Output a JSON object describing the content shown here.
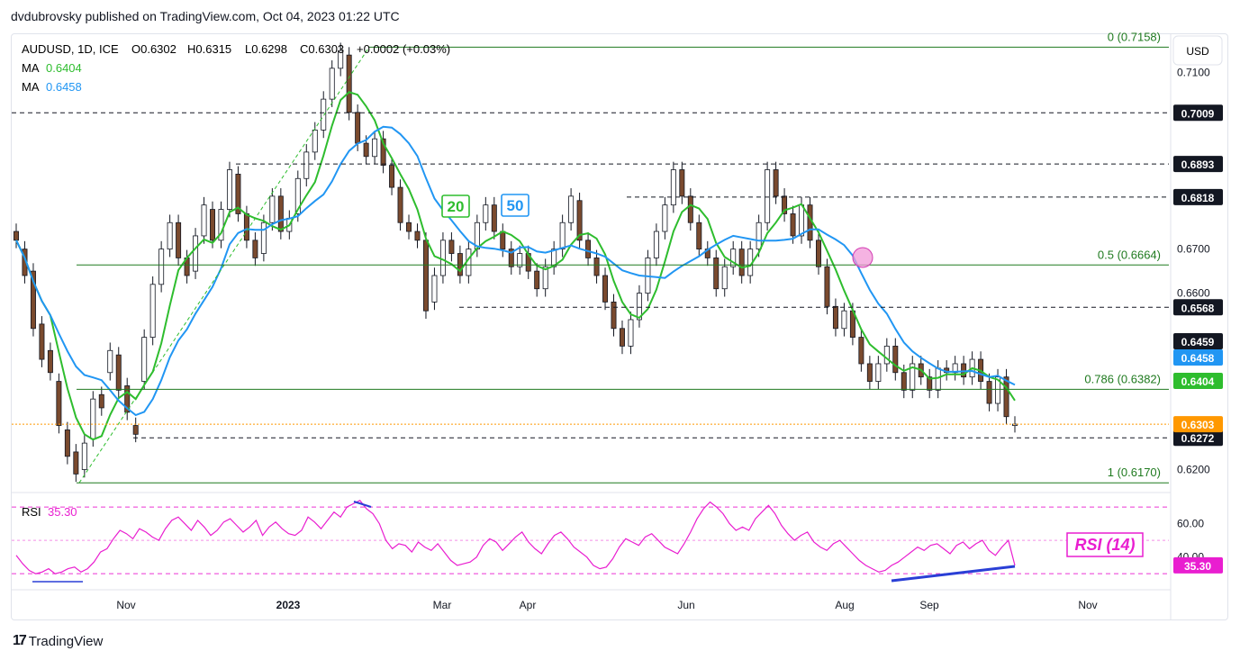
{
  "publisher_line": "dvdubrovsky published on TradingView.com, Oct 04, 2023 01:22 UTC",
  "footer": {
    "logo_mark": "17",
    "brand": "TradingView"
  },
  "colors": {
    "candle": "#131722",
    "candle_body_down": "#7a4a2e",
    "ma20": "#2ebd2e",
    "ma50": "#2196f3",
    "fib_line": "#1f7a1f",
    "level_dash": "#131722",
    "current_price": "#ff9800",
    "rsi": "#e91ed0",
    "rsi_divergence": "#2a3fd6",
    "highlight_circle": "#f29ad8"
  },
  "chart_data": [
    {
      "type": "candlestick",
      "header": {
        "symbol_line": "AUDUSD, 1D, ICE",
        "open": "O0.6302",
        "high": "H0.6315",
        "low": "L0.6298",
        "close": "C0.6303",
        "change": "+0.0002 (+0.03%)"
      },
      "legend": [
        {
          "label": "MA",
          "value": "0.6404",
          "color": "#2ebd2e"
        },
        {
          "label": "MA",
          "value": "0.6458",
          "color": "#2196f3"
        }
      ],
      "currency_button": "USD",
      "x_tick_labels": [
        "Nov",
        "2023",
        "Mar",
        "Apr",
        "Jun",
        "Aug",
        "Sep",
        "Nov"
      ],
      "y_tick_labels": [
        "0.7100",
        "0.6700",
        "0.6600",
        "0.6200"
      ],
      "ylim": [
        0.615,
        0.7175
      ],
      "fib_levels": [
        {
          "label": "0 (0.7158)",
          "value": 0.7158
        },
        {
          "label": "0.5 (0.6664)",
          "value": 0.6664
        },
        {
          "label": "0.786 (0.6382)",
          "value": 0.6382
        },
        {
          "label": "1 (0.6170)",
          "value": 0.617
        }
      ],
      "dashed_levels": [
        {
          "label": "0.7009",
          "value": 0.7009
        },
        {
          "label": "0.6893",
          "value": 0.6893
        },
        {
          "label": "0.6818",
          "value": 0.6818
        },
        {
          "label": "0.6568",
          "value": 0.6568
        },
        {
          "label": "0.6272",
          "value": 0.6272
        }
      ],
      "price_badges": [
        {
          "label": "0.6459",
          "value": 0.6459,
          "color": "#131722"
        },
        {
          "label": "0.6458",
          "value": 0.6458,
          "color": "#2196f3"
        },
        {
          "label": "0.6404",
          "value": 0.6404,
          "color": "#2ebd2e"
        },
        {
          "label": "0.6303",
          "value": 0.6303,
          "color": "#ff9800"
        }
      ],
      "annotations": {
        "ma20_tag": "20",
        "ma50_tag": "50"
      },
      "series": [
        {
          "name": "AUDUSD",
          "points": [
            [
              0.674,
              0.672
            ],
            [
              0.67,
              0.664
            ],
            [
              0.665,
              0.652
            ],
            [
              0.653,
              0.645
            ],
            [
              0.647,
              0.642
            ],
            [
              0.64,
              0.63
            ],
            [
              0.629,
              0.623
            ],
            [
              0.624,
              0.619
            ],
            [
              0.62,
              0.626
            ],
            [
              0.627,
              0.636
            ],
            [
              0.637,
              0.634
            ],
            [
              0.642,
              0.647
            ],
            [
              0.646,
              0.638
            ],
            [
              0.639,
              0.633
            ],
            [
              0.63,
              0.628
            ],
            [
              0.64,
              0.65
            ],
            [
              0.65,
              0.662
            ],
            [
              0.662,
              0.67
            ],
            [
              0.67,
              0.676
            ],
            [
              0.676,
              0.668
            ],
            [
              0.668,
              0.664
            ],
            [
              0.665,
              0.673
            ],
            [
              0.673,
              0.68
            ],
            [
              0.679,
              0.672
            ],
            [
              0.672,
              0.679
            ],
            [
              0.679,
              0.688
            ],
            [
              0.687,
              0.678
            ],
            [
              0.678,
              0.672
            ],
            [
              0.672,
              0.668
            ],
            [
              0.669,
              0.676
            ],
            [
              0.676,
              0.682
            ],
            [
              0.682,
              0.674
            ],
            [
              0.674,
              0.677
            ],
            [
              0.678,
              0.686
            ],
            [
              0.686,
              0.692
            ],
            [
              0.692,
              0.697
            ],
            [
              0.697,
              0.704
            ],
            [
              0.704,
              0.711
            ],
            [
              0.711,
              0.715
            ],
            [
              0.714,
              0.701
            ],
            [
              0.701,
              0.694
            ],
            [
              0.694,
              0.691
            ],
            [
              0.691,
              0.695
            ],
            [
              0.695,
              0.689
            ],
            [
              0.689,
              0.684
            ],
            [
              0.684,
              0.676
            ],
            [
              0.676,
              0.674
            ],
            [
              0.674,
              0.672
            ],
            [
              0.672,
              0.656
            ],
            [
              0.658,
              0.664
            ],
            [
              0.664,
              0.672
            ],
            [
              0.672,
              0.669
            ],
            [
              0.669,
              0.664
            ],
            [
              0.664,
              0.67
            ],
            [
              0.67,
              0.676
            ],
            [
              0.676,
              0.68
            ],
            [
              0.68,
              0.674
            ],
            [
              0.674,
              0.67
            ],
            [
              0.67,
              0.666
            ],
            [
              0.666,
              0.669
            ],
            [
              0.669,
              0.665
            ],
            [
              0.665,
              0.661
            ],
            [
              0.661,
              0.666
            ],
            [
              0.666,
              0.67
            ],
            [
              0.67,
              0.676
            ],
            [
              0.676,
              0.682
            ],
            [
              0.681,
              0.672
            ],
            [
              0.672,
              0.668
            ],
            [
              0.668,
              0.664
            ],
            [
              0.664,
              0.658
            ],
            [
              0.658,
              0.652
            ],
            [
              0.652,
              0.648
            ],
            [
              0.648,
              0.654
            ],
            [
              0.654,
              0.66
            ],
            [
              0.66,
              0.668
            ],
            [
              0.668,
              0.674
            ],
            [
              0.674,
              0.68
            ],
            [
              0.68,
              0.688
            ],
            [
              0.688,
              0.682
            ],
            [
              0.682,
              0.676
            ],
            [
              0.676,
              0.67
            ],
            [
              0.67,
              0.668
            ],
            [
              0.668,
              0.661
            ],
            [
              0.661,
              0.666
            ],
            [
              0.666,
              0.67
            ],
            [
              0.67,
              0.664
            ],
            [
              0.664,
              0.67
            ],
            [
              0.67,
              0.676
            ],
            [
              0.676,
              0.688
            ],
            [
              0.688,
              0.682
            ],
            [
              0.682,
              0.678
            ],
            [
              0.678,
              0.673
            ],
            [
              0.673,
              0.68
            ],
            [
              0.68,
              0.672
            ],
            [
              0.672,
              0.666
            ],
            [
              0.666,
              0.657
            ],
            [
              0.657,
              0.652
            ],
            [
              0.652,
              0.656
            ],
            [
              0.656,
              0.65
            ],
            [
              0.65,
              0.644
            ],
            [
              0.644,
              0.64
            ],
            [
              0.64,
              0.644
            ],
            [
              0.644,
              0.648
            ],
            [
              0.648,
              0.642
            ],
            [
              0.642,
              0.638
            ],
            [
              0.638,
              0.644
            ],
            [
              0.644,
              0.641
            ],
            [
              0.641,
              0.638
            ],
            [
              0.638,
              0.643
            ],
            [
              0.643,
              0.642
            ],
            [
              0.642,
              0.644
            ],
            [
              0.644,
              0.641
            ],
            [
              0.641,
              0.645
            ],
            [
              0.645,
              0.64
            ],
            [
              0.64,
              0.635
            ],
            [
              0.635,
              0.641
            ],
            [
              0.641,
              0.632
            ],
            [
              0.6302,
              0.6303
            ]
          ]
        },
        {
          "name": "MA",
          "value": 0.6404
        },
        {
          "name": "MA",
          "value": 0.6458
        }
      ]
    },
    {
      "type": "line",
      "indicator": "RSI",
      "legend": {
        "label": "RSI",
        "value": "35.30"
      },
      "badge": "35.30",
      "watermark": "RSI (14)",
      "y_tick_labels": [
        "60.00",
        "40.00"
      ],
      "ylim": [
        22,
        76
      ],
      "guides": [
        70,
        50,
        30
      ],
      "values": [
        41,
        36,
        32,
        30,
        31,
        33,
        30,
        31,
        33,
        34,
        31,
        33,
        37,
        43,
        45,
        51,
        56,
        54,
        51,
        57,
        55,
        52,
        50,
        57,
        62,
        64,
        60,
        56,
        62,
        58,
        53,
        56,
        61,
        63,
        59,
        55,
        58,
        62,
        53,
        58,
        61,
        57,
        54,
        53,
        56,
        64,
        61,
        57,
        62,
        67,
        64,
        70,
        72,
        74,
        69,
        66,
        60,
        50,
        45,
        48,
        47,
        43,
        49,
        46,
        44,
        48,
        43,
        38,
        35,
        36,
        37,
        40,
        47,
        51,
        49,
        44,
        48,
        52,
        55,
        49,
        45,
        42,
        48,
        53,
        55,
        51,
        46,
        43,
        40,
        35,
        33,
        34,
        39,
        46,
        51,
        49,
        47,
        52,
        54,
        50,
        46,
        44,
        42,
        48,
        55,
        63,
        69,
        73,
        70,
        66,
        60,
        56,
        58,
        56,
        63,
        67,
        71,
        66,
        59,
        54,
        50,
        53,
        55,
        49,
        46,
        44,
        48,
        50,
        46,
        42,
        38,
        35,
        33,
        31,
        32,
        35,
        37,
        40,
        43,
        46,
        44,
        47,
        48,
        45,
        42,
        47,
        49,
        45,
        48,
        50,
        44,
        41,
        46,
        50,
        35
      ]
    }
  ]
}
